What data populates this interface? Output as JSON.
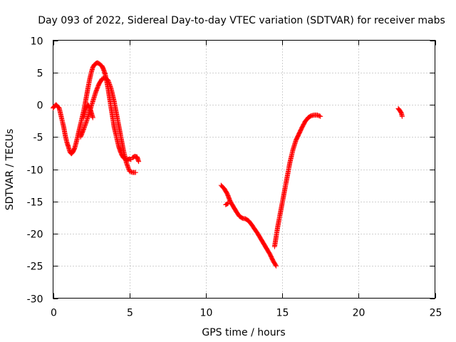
{
  "chart_data": {
    "type": "scatter",
    "title": "Day 093 of 2022, Sidereal Day-to-day VTEC variation (SDTVAR) for receiver mabs",
    "xlabel": "GPS time / hours",
    "ylabel": "SDTVAR / TECUs",
    "xlim": [
      0,
      25
    ],
    "ylim": [
      -30,
      10
    ],
    "xticks": [
      0,
      5,
      10,
      15,
      20,
      25
    ],
    "yticks": [
      10,
      5,
      0,
      -5,
      -10,
      -15,
      -20,
      -25,
      -30
    ],
    "grid": true,
    "marker": "+",
    "color": "#ff0000",
    "series": [
      {
        "name": "mabs",
        "segments": [
          {
            "x": [
              0.0,
              0.1,
              0.2,
              0.3,
              0.4,
              0.5,
              0.6,
              0.7,
              0.8,
              0.9,
              1.0,
              1.1,
              1.2,
              1.3,
              1.4,
              1.5,
              1.6,
              1.7,
              1.8,
              1.9,
              2.0,
              2.1,
              2.2,
              2.3,
              2.4,
              2.5,
              2.6,
              2.7,
              2.8,
              2.9,
              3.0,
              3.1,
              3.2,
              3.3,
              3.4,
              3.5,
              3.6,
              3.7,
              3.8,
              3.9,
              4.0,
              4.1,
              4.2,
              4.3,
              4.4,
              4.5,
              4.6,
              4.7,
              4.8,
              4.9,
              5.0,
              5.1
            ],
            "y": [
              -0.5,
              -0.2,
              0.0,
              -0.3,
              -0.5,
              -1.5,
              -2.5,
              -3.5,
              -4.8,
              -5.8,
              -6.5,
              -7.3,
              -7.6,
              -7.3,
              -6.8,
              -6.0,
              -5.0,
              -4.0,
              -3.0,
              -2.0,
              -1.0,
              0.2,
              1.5,
              2.8,
              4.0,
              5.0,
              5.8,
              6.2,
              6.4,
              6.5,
              6.4,
              6.2,
              6.0,
              5.5,
              4.8,
              3.8,
              2.5,
              1.0,
              -0.5,
              -2.0,
              -3.5,
              -4.5,
              -5.5,
              -6.5,
              -7.2,
              -7.8,
              -8.2,
              -8.4,
              -8.5,
              -8.5,
              -8.4,
              -8.5
            ]
          },
          {
            "x": [
              1.8,
              2.0,
              2.2,
              2.4,
              2.6,
              2.8,
              3.0,
              3.2,
              3.4,
              3.6,
              3.8,
              4.0,
              4.2,
              4.4,
              4.6,
              4.8,
              5.0,
              5.2,
              5.4
            ],
            "y": [
              -5.0,
              -3.8,
              -2.5,
              -1.0,
              0.5,
              2.0,
              3.2,
              4.0,
              4.2,
              3.8,
              2.5,
              0.5,
              -2.0,
              -4.5,
              -7.0,
              -9.0,
              -10.3,
              -10.5,
              -10.5
            ]
          },
          {
            "x": [
              2.0,
              2.15,
              2.3,
              2.45,
              2.6
            ],
            "y": [
              -2.0,
              -0.5,
              0.0,
              -0.8,
              -2.0
            ]
          },
          {
            "x": [
              5.2,
              5.35,
              5.5,
              5.6
            ],
            "y": [
              -8.2,
              -8.0,
              -8.1,
              -8.8
            ]
          },
          {
            "x": [
              11.0,
              11.2,
              11.4,
              11.6,
              11.8,
              12.0,
              12.2,
              12.4,
              12.6,
              12.8,
              13.0,
              13.2,
              13.4,
              13.6,
              13.8,
              14.0,
              14.2,
              14.4,
              14.6
            ],
            "y": [
              -12.5,
              -13.0,
              -13.8,
              -15.0,
              -15.8,
              -16.6,
              -17.3,
              -17.6,
              -17.7,
              -18.0,
              -18.6,
              -19.3,
              -20.0,
              -20.8,
              -21.6,
              -22.4,
              -23.2,
              -24.2,
              -25.0
            ]
          },
          {
            "x": [
              11.3,
              11.45
            ],
            "y": [
              -15.5,
              -15.3
            ]
          },
          {
            "x": [
              14.5,
              14.7,
              14.9,
              15.1,
              15.3,
              15.5,
              15.7,
              15.9,
              16.1,
              16.3,
              16.5,
              16.7,
              16.9,
              17.1,
              17.3,
              17.5
            ],
            "y": [
              -22.0,
              -19.0,
              -16.5,
              -14.0,
              -11.5,
              -9.0,
              -7.0,
              -5.5,
              -4.5,
              -3.5,
              -2.6,
              -2.0,
              -1.7,
              -1.6,
              -1.6,
              -1.8
            ]
          },
          {
            "x": [
              22.6,
              22.7,
              22.8,
              22.85
            ],
            "y": [
              -0.6,
              -0.9,
              -1.3,
              -1.8
            ]
          }
        ]
      }
    ]
  }
}
